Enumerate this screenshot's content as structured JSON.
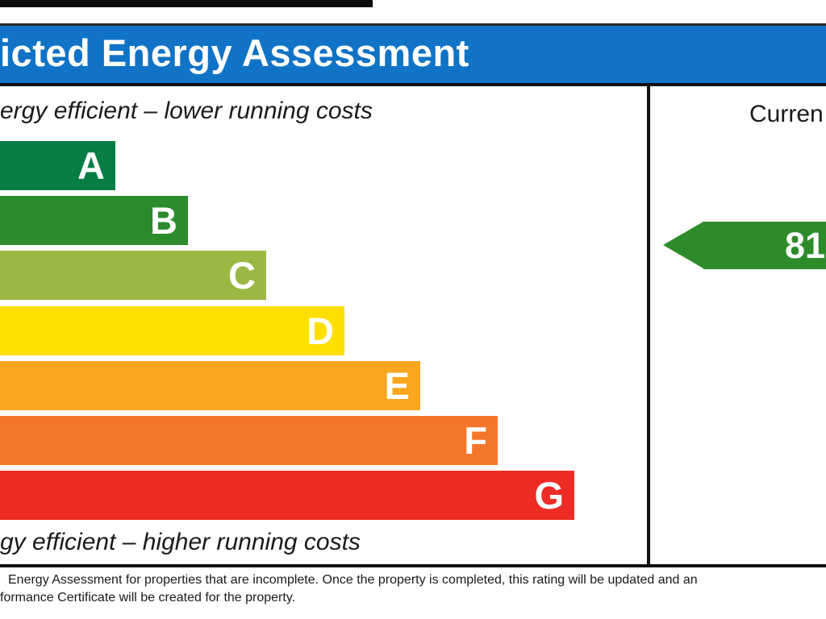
{
  "header": {
    "title": "icted Energy Assessment",
    "bg_color": "#1173c5"
  },
  "left_panel": {
    "top_label": "ergy efficient – lower running costs",
    "bottom_label": "gy efficient – higher running costs"
  },
  "right_panel": {
    "heading": "Curren",
    "rating_value": "81",
    "arrow_color": "#2e8b2a"
  },
  "chart_data": {
    "type": "bar",
    "title": "icted Energy Assessment",
    "categories": [
      "A",
      "B",
      "C",
      "D",
      "E",
      "F",
      "G"
    ],
    "values": [
      143,
      233,
      330,
      427,
      521,
      617,
      712
    ],
    "colors": [
      "#057d45",
      "#2c8b2c",
      "#9ab944",
      "#ffdf00",
      "#faa61e",
      "#f4762a",
      "#ed2c25"
    ],
    "top_annotation": "ergy efficient – lower running costs",
    "bottom_annotation": "gy efficient – higher running costs",
    "current": {
      "value": "81"
    },
    "legend_position": "right-column-current"
  },
  "footnote": {
    "line1": "Energy Assessment for properties that are incomplete. Once the property is completed, this rating will be updated and an",
    "line2": "formance Certificate will be created for the property."
  }
}
